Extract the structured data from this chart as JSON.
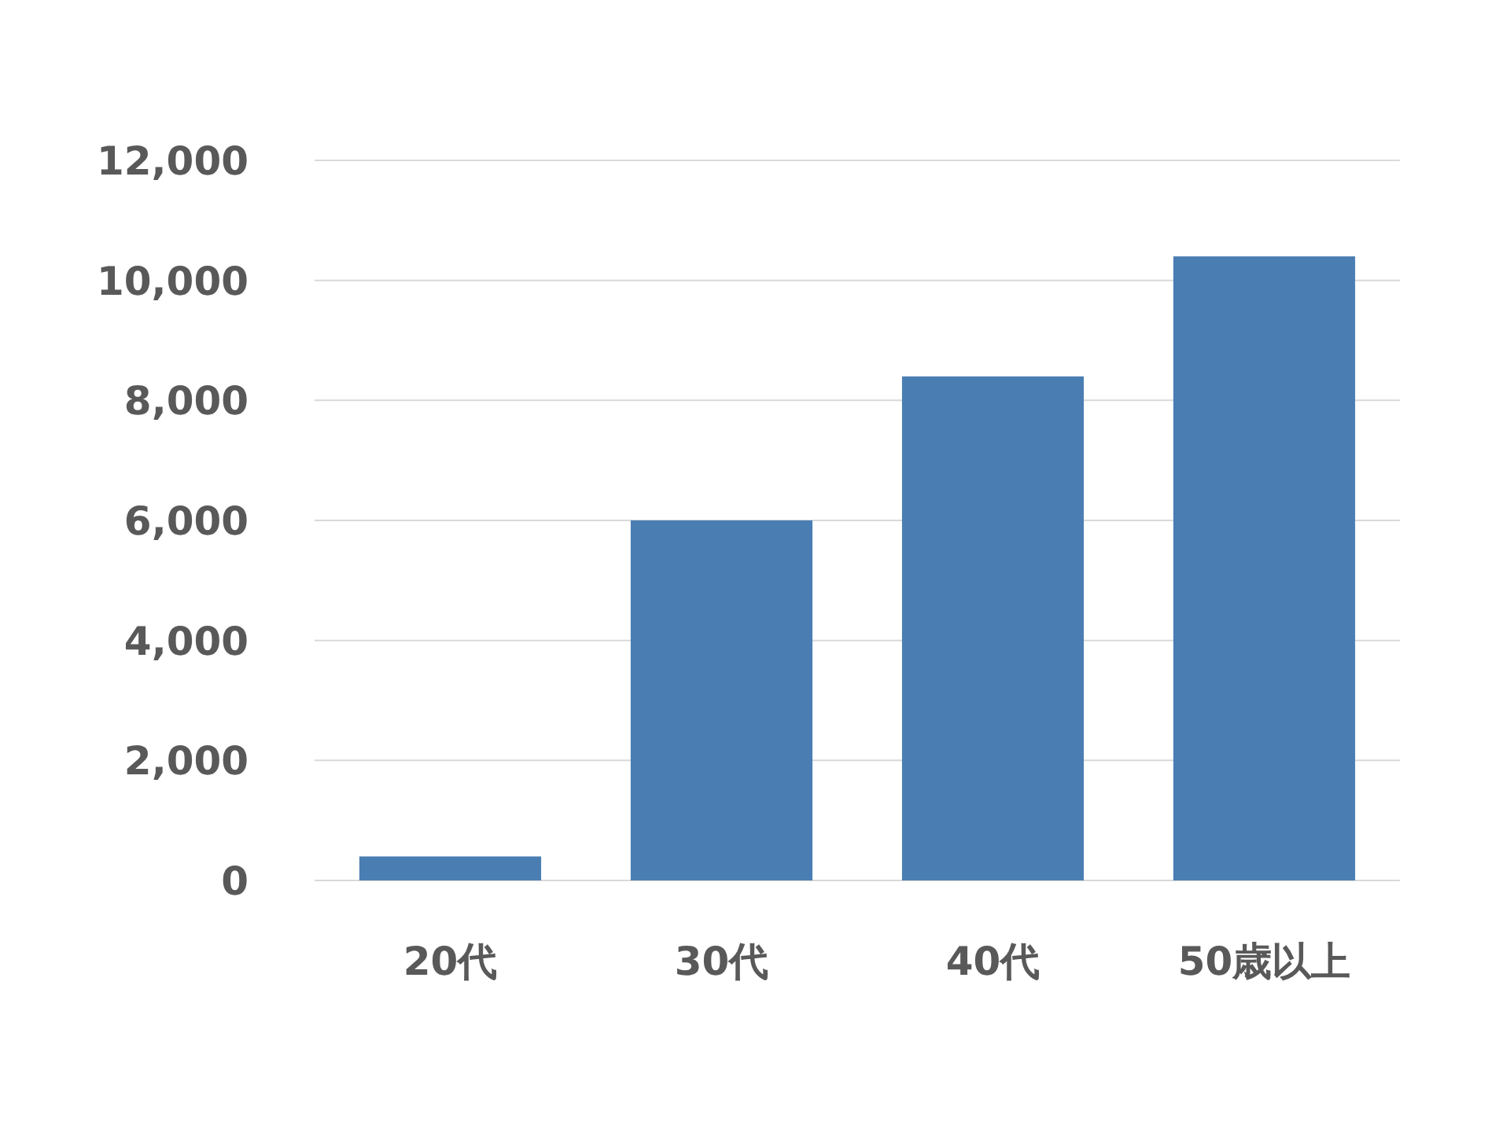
{
  "chart_data": {
    "type": "bar",
    "categories": [
      "20代",
      "30代",
      "40代",
      "50歳以上"
    ],
    "values": [
      400,
      6000,
      8400,
      10400
    ],
    "color": "#4a7eb3",
    "ylim": [
      0,
      12000
    ],
    "yticks": [
      {
        "value": 0,
        "label": "0"
      },
      {
        "value": 2000,
        "label": "2,000"
      },
      {
        "value": 4000,
        "label": "4,000"
      },
      {
        "value": 6000,
        "label": "6,000"
      },
      {
        "value": 8000,
        "label": "8,000"
      },
      {
        "value": 10000,
        "label": "10,000"
      },
      {
        "value": 12000,
        "label": "12,000"
      }
    ],
    "grid": "y"
  }
}
